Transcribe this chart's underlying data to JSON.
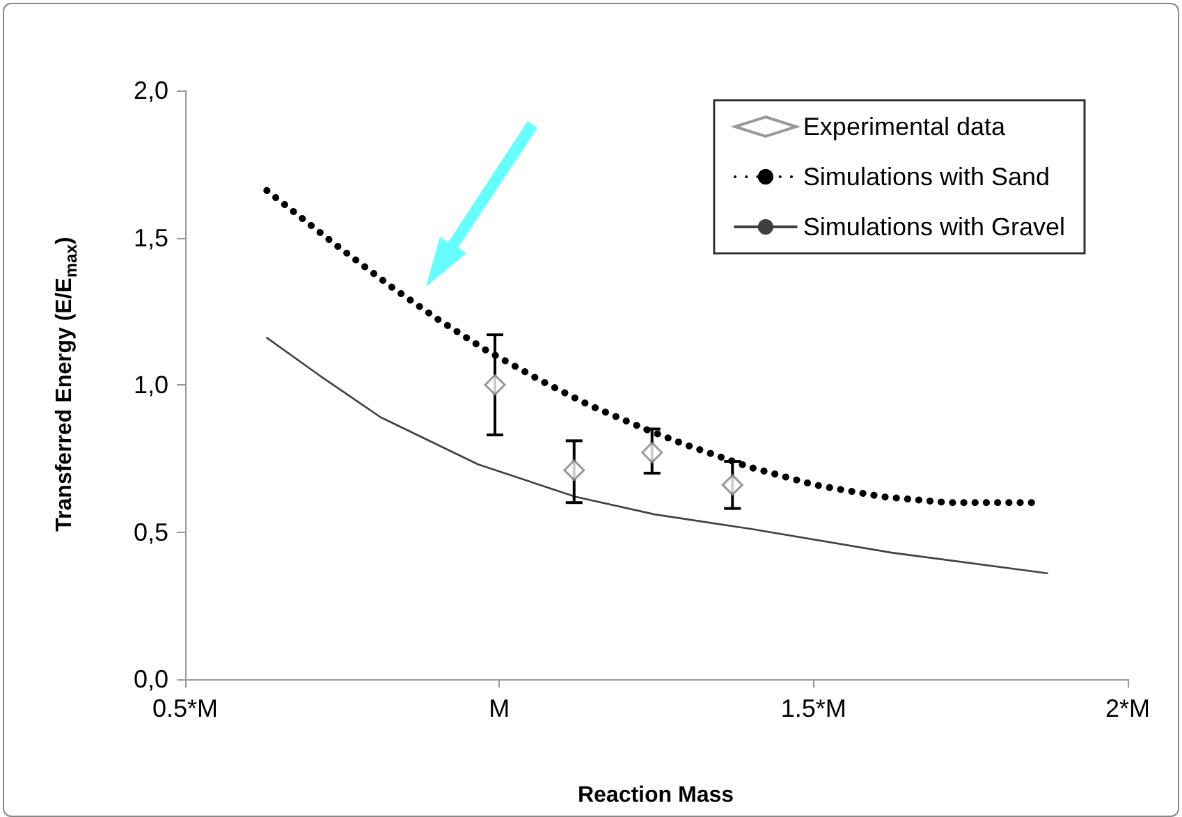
{
  "chart_data": {
    "type": "line",
    "xlabel": "Reaction Mass",
    "ylabel": "Transferred Energy (E/E$_{max}$)",
    "xlim": [
      0.5,
      2
    ],
    "xticks": [
      {
        "value": 0.5,
        "label": "0.5*M"
      },
      {
        "value": 1,
        "label": "M"
      },
      {
        "value": 1.5,
        "label": "1.5*M"
      },
      {
        "value": 2,
        "label": "2*M"
      }
    ],
    "ylim": [
      0,
      2
    ],
    "yticks": [
      {
        "value": 0,
        "label": "0,0"
      },
      {
        "value": 0.5,
        "label": "0,5"
      },
      {
        "value": 1,
        "label": "1,0"
      },
      {
        "value": 1.5,
        "label": "1,5"
      },
      {
        "value": 2,
        "label": "2,0"
      }
    ],
    "legend": "top right",
    "series": [
      {
        "name": "Experimental data",
        "type": "scatter",
        "marker": "diamond",
        "color": "#808080",
        "x": [
          0.993,
          1.119,
          1.243,
          1.371
        ],
        "values": [
          1.0,
          0.71,
          0.77,
          0.66
        ],
        "errors": [
          [
            0.83,
            1.17
          ],
          [
            0.6,
            0.81
          ],
          [
            0.7,
            0.85
          ],
          [
            0.58,
            0.74
          ]
        ]
      },
      {
        "name": "Simulations with Sand",
        "marker": "none",
        "line_style": "dotted",
        "color": "#000000",
        "x": [
          0.63,
          0.737,
          0.83,
          0.904,
          0.977,
          1.07,
          1.144,
          1.232,
          1.292,
          1.399,
          1.502,
          1.609,
          1.713,
          1.861
        ],
        "values": [
          1.66,
          1.48,
          1.33,
          1.22,
          1.12,
          1.01,
          0.93,
          0.85,
          0.8,
          0.72,
          0.66,
          0.62,
          0.6,
          0.6
        ]
      },
      {
        "name": "Simulations with Gravel",
        "marker": "none",
        "line_style": "solid",
        "color": "#404040",
        "x": [
          0.63,
          0.715,
          0.811,
          0.966,
          1.121,
          1.247,
          1.402,
          1.624,
          1.872
        ],
        "values": [
          1.16,
          1.03,
          0.89,
          0.73,
          0.62,
          0.56,
          0.51,
          0.43,
          0.36
        ]
      }
    ]
  }
}
